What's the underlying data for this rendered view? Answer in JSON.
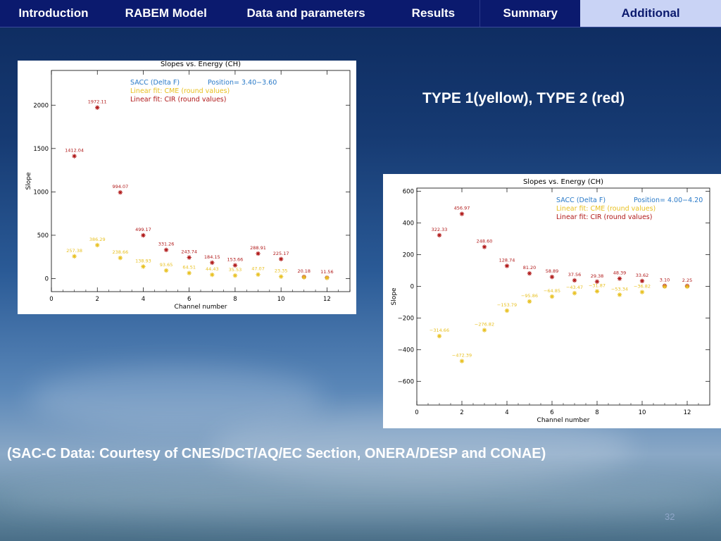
{
  "nav": {
    "tabs": [
      {
        "label": "Introduction"
      },
      {
        "label": "RABEM Model"
      },
      {
        "label": "Data  and parameters"
      },
      {
        "label": "Results"
      },
      {
        "label": "Summary"
      },
      {
        "label": "Additional",
        "active": true
      }
    ],
    "colors": {
      "bar": "#0b1a6e",
      "active": "#c9d3f5"
    }
  },
  "heading": "TYPE 1(yellow), TYPE 2 (red)",
  "credit": "(SAC-C Data: Courtesy of CNES/DCT/AQ/EC Section, ONERA/DESP and CONAE)",
  "page_number": "32",
  "chart_data": [
    {
      "type": "scatter",
      "title": "Slopes vs. Energy (CH)",
      "xlabel": "Channel number",
      "ylabel": "Slope",
      "xlim": [
        0,
        13
      ],
      "ylim": [
        -150,
        2400
      ],
      "xticks": [
        0,
        2,
        4,
        6,
        8,
        10,
        12
      ],
      "yticks": [
        0,
        500,
        1000,
        1500,
        2000
      ],
      "legend": {
        "placement": "top-left",
        "line1": "SACC (Delta F)",
        "position_label": "Position=  3.40−3.60",
        "line2": "Linear fit: CME (round values)",
        "line3": "Linear fit: CIR (round values)"
      },
      "colors": {
        "cme": "#e8c020",
        "cir": "#b01818",
        "legend_blue": "#2a7ac8"
      },
      "series": [
        {
          "name": "CIR",
          "marker": "star",
          "points": [
            {
              "x": 1,
              "y": 1412.04,
              "label": "1412.04"
            },
            {
              "x": 2,
              "y": 1972.11,
              "label": "1972.11"
            },
            {
              "x": 3,
              "y": 994.07,
              "label": "994.07"
            },
            {
              "x": 4,
              "y": 499.17,
              "label": "499.17"
            },
            {
              "x": 5,
              "y": 331.26,
              "label": "331.26"
            },
            {
              "x": 6,
              "y": 243.74,
              "label": "243.74"
            },
            {
              "x": 7,
              "y": 184.15,
              "label": "184.15"
            },
            {
              "x": 8,
              "y": 153.66,
              "label": "153.66"
            },
            {
              "x": 9,
              "y": 288.91,
              "label": "288.91"
            },
            {
              "x": 10,
              "y": 225.17,
              "label": "225.17"
            },
            {
              "x": 11,
              "y": 20.18,
              "label": "20.18"
            },
            {
              "x": 12,
              "y": 11.56,
              "label": "11.56"
            }
          ]
        },
        {
          "name": "CME",
          "marker": "star",
          "points": [
            {
              "x": 1,
              "y": 257.38,
              "label": "257.38"
            },
            {
              "x": 2,
              "y": 386.29,
              "label": "386.29"
            },
            {
              "x": 3,
              "y": 238.66,
              "label": "238.66"
            },
            {
              "x": 4,
              "y": 138.93,
              "label": "138.93"
            },
            {
              "x": 5,
              "y": 93.65,
              "label": "93.65"
            },
            {
              "x": 6,
              "y": 64.51,
              "label": "64.51"
            },
            {
              "x": 7,
              "y": 44.43,
              "label": "44.43"
            },
            {
              "x": 8,
              "y": 35.53,
              "label": "35.53"
            },
            {
              "x": 9,
              "y": 47.07,
              "label": "47.07"
            },
            {
              "x": 10,
              "y": 23.35,
              "label": "23.35"
            },
            {
              "x": 11,
              "y": 15.0,
              "label": ""
            },
            {
              "x": 12,
              "y": 8.0,
              "label": ""
            }
          ]
        }
      ]
    },
    {
      "type": "scatter",
      "title": "Slopes vs. Energy (CH)",
      "xlabel": "Channel number",
      "ylabel": "Slope",
      "xlim": [
        0,
        13
      ],
      "ylim": [
        -750,
        620
      ],
      "xticks": [
        0,
        2,
        4,
        6,
        8,
        10,
        12
      ],
      "yticks": [
        -600,
        -400,
        -200,
        0,
        200,
        400,
        600
      ],
      "legend": {
        "placement": "top-right",
        "line1": "SACC (Delta F)",
        "position_label": "Position=  4.00−4.20",
        "line2": "Linear fit: CME (round values)",
        "line3": "Linear fit: CIR (round values)"
      },
      "colors": {
        "cme": "#e8c020",
        "cir": "#b01818",
        "legend_blue": "#2a7ac8"
      },
      "series": [
        {
          "name": "CIR",
          "marker": "star",
          "points": [
            {
              "x": 1,
              "y": 322.33,
              "label": "322.33"
            },
            {
              "x": 2,
              "y": 456.97,
              "label": "456.97"
            },
            {
              "x": 3,
              "y": 248.6,
              "label": "248.60"
            },
            {
              "x": 4,
              "y": 128.74,
              "label": "128.74"
            },
            {
              "x": 5,
              "y": 81.2,
              "label": "81.20"
            },
            {
              "x": 6,
              "y": 58.89,
              "label": "58.89"
            },
            {
              "x": 7,
              "y": 37.56,
              "label": "37.56"
            },
            {
              "x": 8,
              "y": 29.38,
              "label": "29.38"
            },
            {
              "x": 9,
              "y": 48.39,
              "label": "48.39"
            },
            {
              "x": 10,
              "y": 33.62,
              "label": "33.62"
            },
            {
              "x": 11,
              "y": 3.1,
              "label": "3.10"
            },
            {
              "x": 12,
              "y": 2.25,
              "label": "2.25"
            }
          ]
        },
        {
          "name": "CME",
          "marker": "star",
          "points": [
            {
              "x": 1,
              "y": -314.66,
              "label": "−314.66"
            },
            {
              "x": 2,
              "y": -472.39,
              "label": "−472.39"
            },
            {
              "x": 3,
              "y": -276.82,
              "label": "−276.82"
            },
            {
              "x": 4,
              "y": -153.79,
              "label": "−153.79"
            },
            {
              "x": 5,
              "y": -95.86,
              "label": "−95.86"
            },
            {
              "x": 6,
              "y": -64.85,
              "label": "−64.85"
            },
            {
              "x": 7,
              "y": -43.47,
              "label": "−43.47"
            },
            {
              "x": 8,
              "y": -31.87,
              "label": "−31.87"
            },
            {
              "x": 9,
              "y": -53.34,
              "label": "−53.34"
            },
            {
              "x": 10,
              "y": -36.82,
              "label": "−36.82"
            },
            {
              "x": 11,
              "y": -2.0,
              "label": ""
            },
            {
              "x": 12,
              "y": -2.5,
              "label": ""
            }
          ]
        }
      ]
    }
  ]
}
